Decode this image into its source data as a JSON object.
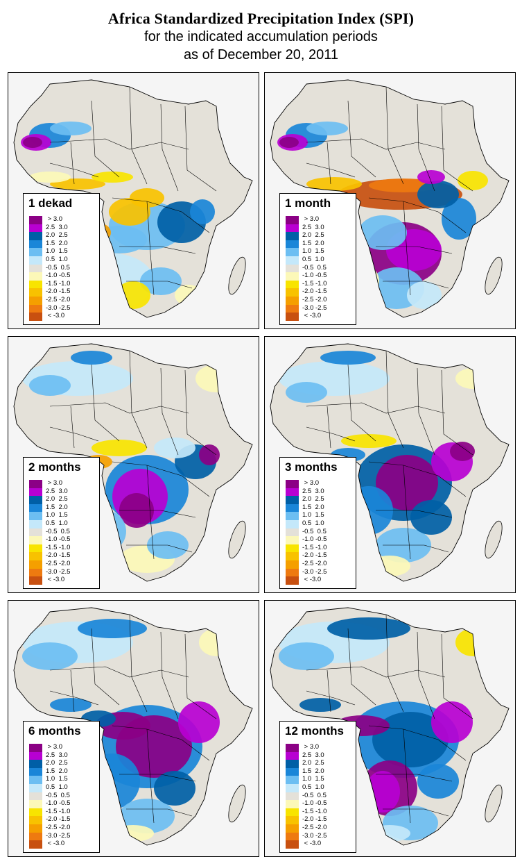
{
  "header": {
    "title": "Africa Standardized Precipitation Index (SPI)",
    "subtitle_line1": "for the indicated accumulation periods",
    "subtitle_line2": "as of December 20, 2011"
  },
  "legend_items": [
    {
      "label": " > 3.0",
      "color": "#8b0085"
    },
    {
      "label": "2.5  3.0",
      "color": "#b800d2"
    },
    {
      "label": "2.0  2.5",
      "color": "#005fa6"
    },
    {
      "label": "1.5  2.0",
      "color": "#1a86d8"
    },
    {
      "label": "1.0  1.5",
      "color": "#6cbef2"
    },
    {
      "label": "0.5  1.0",
      "color": "#c4e8fa"
    },
    {
      "label": "-0.5  0.5",
      "color": "#e4e1d9"
    },
    {
      "label": "-1.0 -0.5",
      "color": "#fcf8b8"
    },
    {
      "label": "-1.5 -1.0",
      "color": "#f8e400"
    },
    {
      "label": "-2.0 -1.5",
      "color": "#f8c200"
    },
    {
      "label": "-2.5 -2.0",
      "color": "#f59f00"
    },
    {
      "label": "-3.0 -2.5",
      "color": "#ee7a10"
    },
    {
      "label": " < -3.0",
      "color": "#c85010"
    }
  ],
  "panels": [
    {
      "label": "1 dekad",
      "pattern": "dekad"
    },
    {
      "label": "1 month",
      "pattern": "month1"
    },
    {
      "label": "2 months",
      "pattern": "month2"
    },
    {
      "label": "3 months",
      "pattern": "month3"
    },
    {
      "label": "6 months",
      "pattern": "month6"
    },
    {
      "label": "12 months",
      "pattern": "month12"
    }
  ],
  "colors": {
    "land": "#e4e1d9",
    "background": "#f5f5f5",
    "border": "#000000"
  }
}
